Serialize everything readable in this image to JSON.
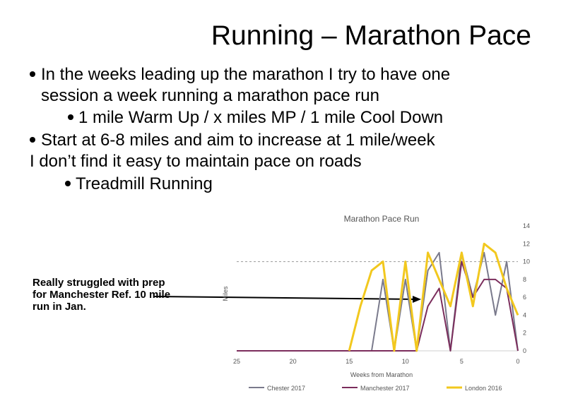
{
  "slide": {
    "title": "Running – Marathon Pace",
    "bullets": [
      "In the weeks leading up the marathon I try to have one",
      "session a week running a marathon pace run",
      "1 mile Warm Up / x miles MP / 1 mile Cool Down",
      "Start at 6-8 miles and aim to increase at 1 mile/week",
      "I don’t find it easy to maintain pace on roads",
      "Treadmill Running"
    ],
    "note": "Really struggled with prep for Manchester Ref. 10 mile run in Jan."
  },
  "colors": {
    "chester": "#7a7a8c",
    "manchester": "#7b2d5c",
    "london": "#f2c81e",
    "grid": "#cfcfcf",
    "axis_text": "#555555"
  },
  "chart_data": {
    "type": "line",
    "title": "Marathon Pace Run",
    "xlabel": "Weeks from Marathon",
    "ylabel": "Miles",
    "xlim": [
      25,
      0
    ],
    "ylim": [
      0,
      14
    ],
    "x_ticks": [
      25,
      20,
      15,
      10,
      5,
      0
    ],
    "y_ticks": [
      0,
      2,
      4,
      6,
      8,
      10,
      12,
      14
    ],
    "reference_line": 10,
    "legend_position": "bottom",
    "series": [
      {
        "name": "Chester 2017",
        "x": [
          25,
          24,
          23,
          22,
          21,
          20,
          19,
          18,
          17,
          16,
          15,
          14,
          13,
          12,
          11,
          10,
          9,
          8,
          7,
          6,
          5,
          4,
          3,
          2,
          1,
          0
        ],
        "y": [
          0,
          0,
          0,
          0,
          0,
          0,
          0,
          0,
          0,
          0,
          0,
          0,
          0,
          8,
          0,
          8,
          0,
          9,
          11,
          0,
          11,
          6,
          11,
          4,
          10,
          0
        ]
      },
      {
        "name": "Manchester 2017",
        "x": [
          25,
          24,
          23,
          22,
          21,
          20,
          19,
          18,
          17,
          16,
          15,
          14,
          13,
          12,
          11,
          10,
          9,
          8,
          7,
          6,
          5,
          4,
          3,
          2,
          1,
          0
        ],
        "y": [
          0,
          0,
          0,
          0,
          0,
          0,
          0,
          0,
          0,
          0,
          0,
          0,
          0,
          0,
          0,
          0,
          0,
          5,
          7,
          0,
          10,
          6,
          8,
          8,
          7,
          0
        ]
      },
      {
        "name": "London 2016",
        "x": [
          15,
          14,
          13,
          12,
          11,
          10,
          9,
          8,
          7,
          6,
          5,
          4,
          3,
          2,
          1,
          0
        ],
        "y": [
          0,
          5,
          9,
          10,
          0,
          10,
          0,
          11,
          8,
          5,
          11,
          5,
          12,
          11,
          7,
          4
        ]
      }
    ]
  }
}
